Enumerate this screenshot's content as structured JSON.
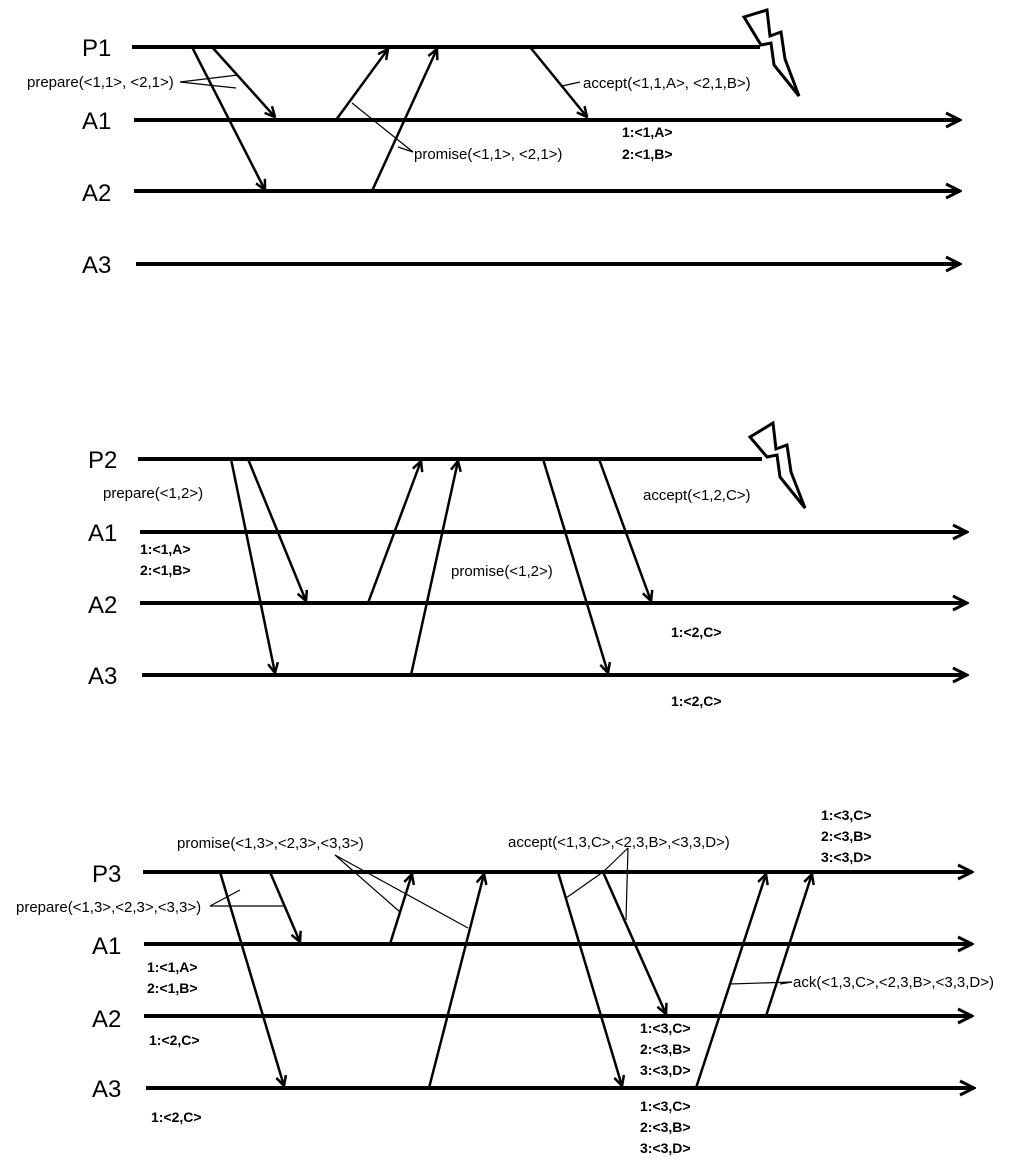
{
  "panel1": {
    "proc": "P1",
    "acc1": "A1",
    "acc2": "A2",
    "acc3": "A3",
    "prepare": "prepare(<1,1>, <2,1>)",
    "promise": "promise(<1,1>, <2,1>)",
    "accept": "accept(<1,1,A>, <2,1,B>)",
    "a1_state": [
      "1:<1,A>",
      "2:<1,B>"
    ]
  },
  "panel2": {
    "proc": "P2",
    "acc1": "A1",
    "acc2": "A2",
    "acc3": "A3",
    "prepare": "prepare(<1,2>)",
    "promise": "promise(<1,2>)",
    "accept": "accept(<1,2,C>)",
    "a1_state": [
      "1:<1,A>",
      "2:<1,B>"
    ],
    "a2_state": [
      "1:<2,C>"
    ],
    "a3_state": [
      "1:<2,C>"
    ]
  },
  "panel3": {
    "proc": "P3",
    "acc1": "A1",
    "acc2": "A2",
    "acc3": "A3",
    "promise": "promise(<1,3>,<2,3>,<3,3>)",
    "prepare": "prepare(<1,3>,<2,3>,<3,3>)",
    "accept": "accept(<1,3,C>,<2,3,B>,<3,3,D>)",
    "ack": "ack(<1,3,C>,<2,3,B>,<3,3,D>)",
    "p3_state": [
      "1:<3,C>",
      "2:<3,B>",
      "3:<3,D>"
    ],
    "a1_state": [
      "1:<1,A>",
      "2:<1,B>"
    ],
    "a2_state_before": [
      "1:<2,C>"
    ],
    "a3_state_before": [
      "1:<2,C>"
    ],
    "a2_state_after": [
      "1:<3,C>",
      "2:<3,B>",
      "3:<3,D>"
    ],
    "a3_state_after": [
      "1:<3,C>",
      "2:<3,B>",
      "3:<3,D>"
    ]
  }
}
